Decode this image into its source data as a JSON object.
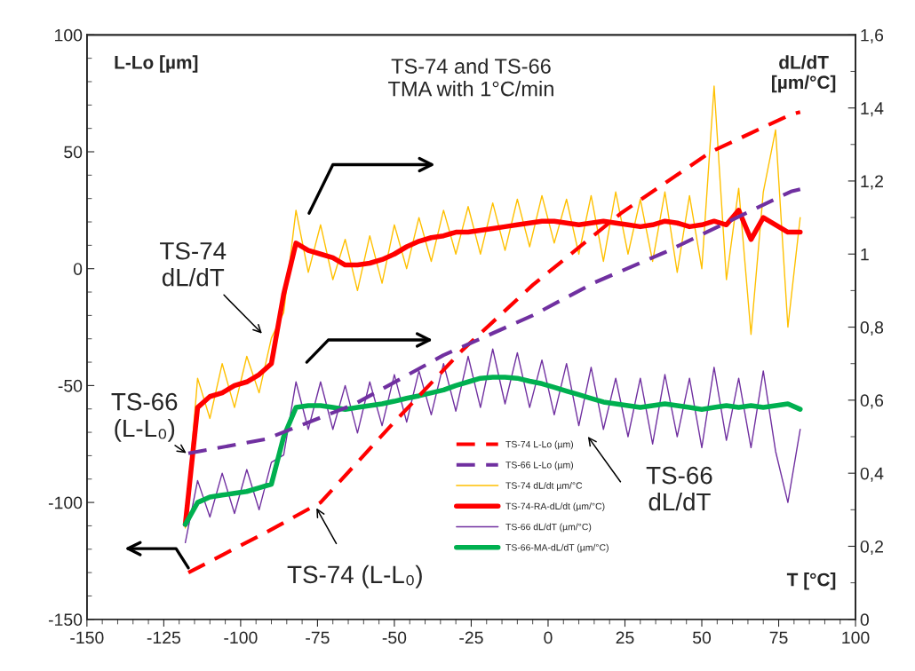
{
  "chart_data": {
    "type": "line",
    "title": "TS-74 and TS-66\nTMA with 1°C/min",
    "xlabel": "T [°C]",
    "ylabel": "L-Lo [µm]",
    "y2label": "dL/dT\n[µm/°C]",
    "xlim": [
      -150,
      100
    ],
    "xticks": [
      -150,
      -125,
      -100,
      -75,
      -50,
      -25,
      0,
      25,
      50,
      75,
      100
    ],
    "ylim": [
      -150,
      100
    ],
    "yticks": [
      -150,
      -100,
      -50,
      0,
      50,
      100
    ],
    "y2lim": [
      0,
      1.6
    ],
    "y2ticks": [
      0,
      {
        "value": 0.2,
        "label": "0,2"
      },
      {
        "value": 0.4,
        "label": "0,4"
      },
      {
        "value": 0.6,
        "label": "0,6"
      },
      {
        "value": 0.8,
        "label": "0,8"
      },
      1,
      {
        "value": 1.2,
        "label": "1,2"
      },
      {
        "value": 1.4,
        "label": "1,4"
      },
      {
        "value": 1.6,
        "label": "1,6"
      }
    ],
    "grid": false,
    "legend": "bottom",
    "marker": "none",
    "x": [
      -118,
      -114,
      -110,
      -106,
      -102,
      -98,
      -94,
      -90,
      -86,
      -82,
      -78,
      -74,
      -70,
      -66,
      -62,
      -58,
      -54,
      -50,
      -46,
      -42,
      -38,
      -34,
      -30,
      -26,
      -22,
      -18,
      -14,
      -10,
      -6,
      -2,
      2,
      6,
      10,
      14,
      18,
      22,
      26,
      30,
      34,
      38,
      42,
      46,
      50,
      54,
      58,
      62,
      66,
      70,
      74,
      78,
      82
    ],
    "series": [
      {
        "name": "TS-74 L-Lo (µm)",
        "color": "#ff0000",
        "line_style": "dashed",
        "x": [
          -117,
          -92,
          -74,
          -51,
          -28,
          -5,
          24,
          53,
          79,
          82
        ],
        "values": [
          -130,
          -113,
          -100,
          -67,
          -35,
          -7,
          24,
          50,
          66,
          67
        ]
      },
      {
        "name": "TS-66 L-Lo (µm)",
        "color": "#7030a0",
        "line_style": "dashed",
        "x": [
          -117,
          -92,
          -63,
          -34,
          -5,
          15,
          38,
          79,
          82
        ],
        "values": [
          -79,
          -73,
          -58,
          -37,
          -20,
          -6,
          7,
          33,
          34
        ]
      },
      {
        "name": "TS-74 dL/dt µm/°C",
        "color": "#ffc000",
        "line_style": "solid",
        "axis": "y2",
        "values": [
          0.25,
          0.66,
          0.55,
          0.7,
          0.58,
          0.72,
          0.62,
          0.77,
          0.84,
          1.12,
          0.95,
          1.08,
          0.93,
          1.04,
          0.9,
          1.05,
          0.92,
          1.08,
          0.96,
          1.1,
          0.98,
          1.12,
          1.0,
          1.13,
          1.0,
          1.14,
          1.01,
          1.15,
          1.02,
          1.16,
          1.03,
          1.15,
          1.0,
          1.16,
          0.98,
          1.17,
          1.0,
          1.15,
          0.98,
          1.17,
          0.95,
          1.16,
          0.96,
          1.46,
          0.93,
          1.18,
          0.78,
          1.17,
          1.34,
          0.8,
          1.1
        ]
      },
      {
        "name": "TS-74-RA-dL/dt (µm/°C)",
        "color": "#ff0000",
        "line_style": "solid",
        "axis": "y2",
        "values": [
          0.26,
          0.58,
          0.61,
          0.62,
          0.64,
          0.65,
          0.67,
          0.7,
          0.89,
          1.03,
          1.01,
          1.0,
          0.99,
          0.97,
          0.97,
          0.975,
          0.985,
          1.0,
          1.02,
          1.035,
          1.045,
          1.05,
          1.06,
          1.06,
          1.065,
          1.07,
          1.075,
          1.08,
          1.085,
          1.09,
          1.09,
          1.085,
          1.08,
          1.085,
          1.09,
          1.085,
          1.08,
          1.075,
          1.08,
          1.09,
          1.085,
          1.075,
          1.08,
          1.09,
          1.08,
          1.12,
          1.04,
          1.1,
          1.08,
          1.06,
          1.06
        ]
      },
      {
        "name": "TS-66 dL/dT (µm/°C)",
        "color": "#7030a0",
        "line_style": "solid",
        "axis": "y2",
        "values": [
          0.21,
          0.38,
          0.28,
          0.4,
          0.29,
          0.41,
          0.3,
          0.43,
          0.45,
          0.65,
          0.52,
          0.65,
          0.52,
          0.64,
          0.51,
          0.65,
          0.53,
          0.67,
          0.54,
          0.68,
          0.56,
          0.7,
          0.57,
          0.72,
          0.58,
          0.74,
          0.59,
          0.73,
          0.58,
          0.71,
          0.56,
          0.7,
          0.53,
          0.69,
          0.52,
          0.66,
          0.5,
          0.66,
          0.48,
          0.67,
          0.5,
          0.66,
          0.47,
          0.69,
          0.49,
          0.66,
          0.47,
          0.68,
          0.46,
          0.32,
          0.52
        ]
      },
      {
        "name": "TS-66-MA-dL/dT (µm/°C)",
        "color": "#00b050",
        "line_style": "solid",
        "axis": "y2",
        "values": [
          0.26,
          0.32,
          0.335,
          0.34,
          0.345,
          0.35,
          0.36,
          0.37,
          0.5,
          0.58,
          0.585,
          0.585,
          0.58,
          0.575,
          0.58,
          0.585,
          0.59,
          0.597,
          0.605,
          0.612,
          0.62,
          0.628,
          0.64,
          0.65,
          0.66,
          0.663,
          0.663,
          0.66,
          0.652,
          0.645,
          0.635,
          0.625,
          0.615,
          0.605,
          0.595,
          0.59,
          0.585,
          0.58,
          0.585,
          0.59,
          0.585,
          0.58,
          0.575,
          0.58,
          0.585,
          0.58,
          0.585,
          0.58,
          0.585,
          0.59,
          0.575
        ]
      }
    ],
    "annotations": [
      "TS-74\ndL/dT",
      "TS-66\n(L-L₀)",
      "TS-74 (L-L₀)",
      "TS-66\ndL/dT"
    ]
  }
}
